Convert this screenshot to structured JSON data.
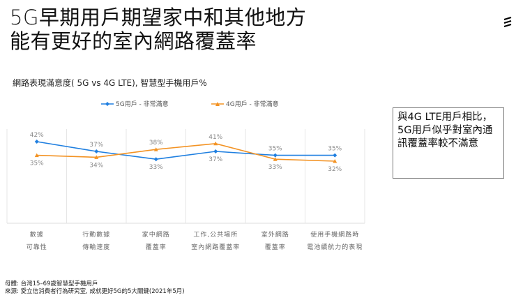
{
  "title": [
    "5G早期用戶期望家中和其他地方",
    "能有更好的室內網路覆蓋率"
  ],
  "chart_subtitle": "網路表現滿意度( 5G vs 4G LTE), 智慧型手機用戶%",
  "callout": "與4G LTE用戶相比，5G用戶似乎對室內通訊覆蓋率較不滿意",
  "footnote": [
    "母體: 台灣15–69歲智慧型手機用戶",
    "來源: 愛立信消費者行為研究室, 成就更好5G的5大關鍵(2021年5月)"
  ],
  "chart_data": {
    "type": "line",
    "categories": [
      [
        "數據",
        "可靠性"
      ],
      [
        "行動數據",
        "傳輸速度"
      ],
      [
        "家中網路",
        "覆蓋率"
      ],
      [
        "工作,公共場所",
        "室內網路覆蓋率"
      ],
      [
        "室外網路",
        "覆蓋率"
      ],
      [
        "使用手機網路時",
        "電池續航力的表現"
      ]
    ],
    "series": [
      {
        "name": "5G用戶 - 非常滿意",
        "color": "#1f7fe0",
        "marker": "diamond",
        "values": [
          42,
          37,
          33,
          37,
          35,
          35
        ]
      },
      {
        "name": "4G用戶 - 非常滿意",
        "color": "#f39324",
        "marker": "triangle",
        "values": [
          35,
          34,
          38,
          41,
          33,
          32
        ]
      }
    ],
    "data_labels": true,
    "grid": "vertical",
    "legend": "top"
  }
}
